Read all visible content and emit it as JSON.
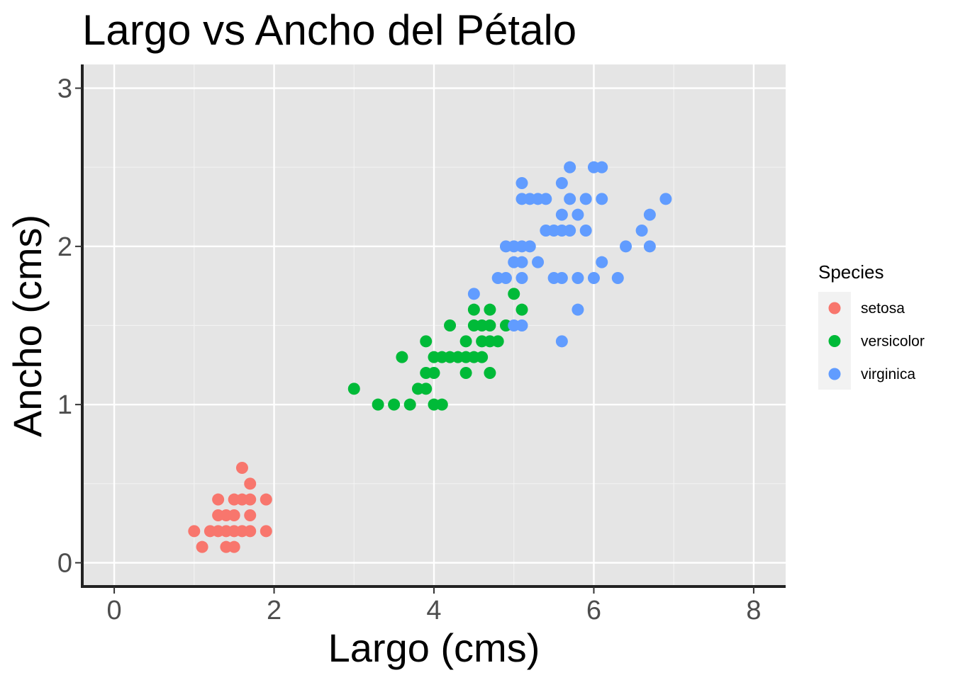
{
  "chart_data": {
    "type": "scatter",
    "title": "Largo vs Ancho del Pétalo",
    "xlabel": "Largo (cms)",
    "ylabel": "Ancho (cms)",
    "xlim": [
      -0.4,
      8.4
    ],
    "ylim": [
      -0.15,
      3.15
    ],
    "x_ticks": [
      0,
      2,
      4,
      6,
      8
    ],
    "y_ticks": [
      0,
      1,
      2,
      3
    ],
    "grid": true,
    "background": "#e5e5e5",
    "legend": {
      "title": "Species",
      "position": "right"
    },
    "series": [
      {
        "name": "setosa",
        "color": "#f8766d",
        "points": [
          [
            1.0,
            0.2
          ],
          [
            1.1,
            0.1
          ],
          [
            1.2,
            0.2
          ],
          [
            1.3,
            0.2
          ],
          [
            1.3,
            0.3
          ],
          [
            1.3,
            0.4
          ],
          [
            1.4,
            0.1
          ],
          [
            1.4,
            0.2
          ],
          [
            1.4,
            0.3
          ],
          [
            1.5,
            0.1
          ],
          [
            1.5,
            0.2
          ],
          [
            1.5,
            0.3
          ],
          [
            1.5,
            0.4
          ],
          [
            1.6,
            0.2
          ],
          [
            1.6,
            0.4
          ],
          [
            1.6,
            0.6
          ],
          [
            1.7,
            0.2
          ],
          [
            1.7,
            0.3
          ],
          [
            1.7,
            0.4
          ],
          [
            1.7,
            0.5
          ],
          [
            1.9,
            0.2
          ],
          [
            1.9,
            0.4
          ]
        ]
      },
      {
        "name": "versicolor",
        "color": "#00ba38",
        "points": [
          [
            3.0,
            1.1
          ],
          [
            3.3,
            1.0
          ],
          [
            3.5,
            1.0
          ],
          [
            3.6,
            1.3
          ],
          [
            3.7,
            1.0
          ],
          [
            3.8,
            1.1
          ],
          [
            3.9,
            1.1
          ],
          [
            3.9,
            1.2
          ],
          [
            3.9,
            1.4
          ],
          [
            4.0,
            1.0
          ],
          [
            4.0,
            1.2
          ],
          [
            4.0,
            1.3
          ],
          [
            4.1,
            1.0
          ],
          [
            4.1,
            1.3
          ],
          [
            4.2,
            1.3
          ],
          [
            4.2,
            1.5
          ],
          [
            4.3,
            1.3
          ],
          [
            4.4,
            1.2
          ],
          [
            4.4,
            1.3
          ],
          [
            4.4,
            1.4
          ],
          [
            4.5,
            1.3
          ],
          [
            4.5,
            1.5
          ],
          [
            4.5,
            1.6
          ],
          [
            4.6,
            1.3
          ],
          [
            4.6,
            1.4
          ],
          [
            4.6,
            1.5
          ],
          [
            4.7,
            1.2
          ],
          [
            4.7,
            1.4
          ],
          [
            4.7,
            1.5
          ],
          [
            4.7,
            1.6
          ],
          [
            4.8,
            1.4
          ],
          [
            4.9,
            1.5
          ],
          [
            5.0,
            1.7
          ],
          [
            5.1,
            1.6
          ]
        ]
      },
      {
        "name": "virginica",
        "color": "#619cff",
        "points": [
          [
            4.5,
            1.7
          ],
          [
            4.8,
            1.8
          ],
          [
            4.9,
            1.8
          ],
          [
            4.9,
            2.0
          ],
          [
            5.0,
            1.5
          ],
          [
            5.0,
            1.9
          ],
          [
            5.0,
            2.0
          ],
          [
            5.1,
            1.5
          ],
          [
            5.1,
            1.8
          ],
          [
            5.1,
            1.9
          ],
          [
            5.1,
            2.0
          ],
          [
            5.1,
            2.3
          ],
          [
            5.1,
            2.4
          ],
          [
            5.2,
            2.0
          ],
          [
            5.2,
            2.3
          ],
          [
            5.3,
            1.9
          ],
          [
            5.3,
            2.3
          ],
          [
            5.4,
            2.1
          ],
          [
            5.4,
            2.3
          ],
          [
            5.5,
            1.8
          ],
          [
            5.5,
            2.1
          ],
          [
            5.6,
            1.4
          ],
          [
            5.6,
            1.8
          ],
          [
            5.6,
            2.1
          ],
          [
            5.6,
            2.2
          ],
          [
            5.6,
            2.4
          ],
          [
            5.7,
            2.1
          ],
          [
            5.7,
            2.3
          ],
          [
            5.7,
            2.5
          ],
          [
            5.8,
            1.6
          ],
          [
            5.8,
            1.8
          ],
          [
            5.8,
            2.2
          ],
          [
            5.9,
            2.1
          ],
          [
            5.9,
            2.3
          ],
          [
            6.0,
            1.8
          ],
          [
            6.0,
            2.5
          ],
          [
            6.1,
            1.9
          ],
          [
            6.1,
            2.3
          ],
          [
            6.1,
            2.5
          ],
          [
            6.3,
            1.8
          ],
          [
            6.4,
            2.0
          ],
          [
            6.6,
            2.1
          ],
          [
            6.7,
            2.0
          ],
          [
            6.7,
            2.2
          ],
          [
            6.9,
            2.3
          ]
        ]
      }
    ]
  }
}
